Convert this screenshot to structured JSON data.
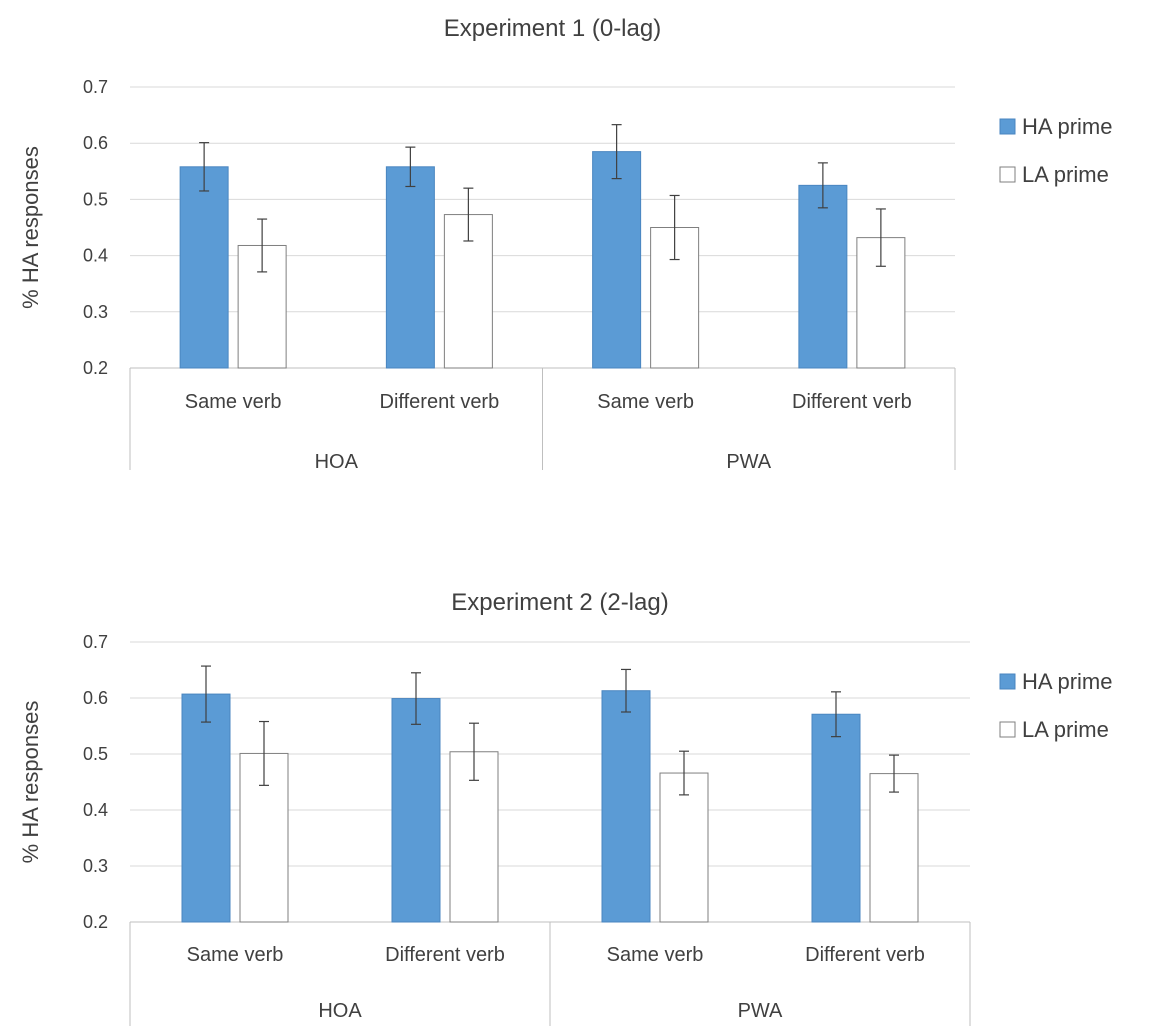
{
  "chart_data": [
    {
      "type": "bar",
      "title": "Experiment 1 (0-lag)",
      "ylabel": "% HA responses",
      "xlabel": "",
      "ylim": [
        0.2,
        0.7
      ],
      "yticks": [
        "0.2",
        "0.3",
        "0.4",
        "0.5",
        "0.6",
        "0.7"
      ],
      "grid": true,
      "legend_position": "right",
      "categories": [
        "Same verb",
        "Different verb",
        "Same verb",
        "Different verb"
      ],
      "groups": [
        {
          "label": "HOA",
          "span": [
            0,
            1
          ]
        },
        {
          "label": "PWA",
          "span": [
            2,
            3
          ]
        }
      ],
      "series": [
        {
          "name": "HA prime",
          "color": "#5b9bd5",
          "values": [
            0.558,
            0.558,
            0.585,
            0.525
          ],
          "errors": [
            0.043,
            0.035,
            0.048,
            0.04
          ]
        },
        {
          "name": "LA prime",
          "color": "#ffffff",
          "values": [
            0.418,
            0.473,
            0.45,
            0.432
          ],
          "errors": [
            0.047,
            0.047,
            0.057,
            0.051
          ]
        }
      ]
    },
    {
      "type": "bar",
      "title": "Experiment 2 (2-lag)",
      "ylabel": "% HA responses",
      "xlabel": "",
      "ylim": [
        0.2,
        0.7
      ],
      "yticks": [
        "0.2",
        "0.3",
        "0.4",
        "0.5",
        "0.6",
        "0.7"
      ],
      "grid": true,
      "legend_position": "right",
      "categories": [
        "Same verb",
        "Different verb",
        "Same verb",
        "Different verb"
      ],
      "groups": [
        {
          "label": "HOA",
          "span": [
            0,
            1
          ]
        },
        {
          "label": "PWA",
          "span": [
            2,
            3
          ]
        }
      ],
      "series": [
        {
          "name": "HA prime",
          "color": "#5b9bd5",
          "values": [
            0.607,
            0.599,
            0.613,
            0.571
          ],
          "errors": [
            0.05,
            0.046,
            0.038,
            0.04
          ]
        },
        {
          "name": "LA prime",
          "color": "#ffffff",
          "values": [
            0.501,
            0.504,
            0.466,
            0.465
          ],
          "errors": [
            0.057,
            0.051,
            0.039,
            0.033
          ]
        }
      ]
    }
  ]
}
